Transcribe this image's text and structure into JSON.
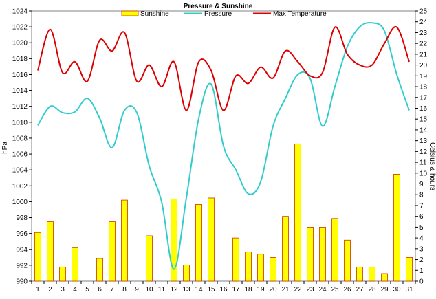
{
  "chart_data": {
    "type": "bar",
    "title": "Pressure & Sunshine",
    "ylabel_left": "hPa",
    "ylabel_right": "Celsius & hours",
    "x_categories": [
      "1",
      "2",
      "3",
      "4",
      "5",
      "6",
      "7",
      "8",
      "9",
      "10",
      "11",
      "12",
      "13",
      "14",
      "15",
      "16",
      "17",
      "18",
      "19",
      "20",
      "21",
      "22",
      "23",
      "24",
      "25",
      "26",
      "27",
      "28",
      "29",
      "30",
      "31"
    ],
    "y_left_ticks": [
      "990",
      "992",
      "994",
      "996",
      "998",
      "1000",
      "1002",
      "1004",
      "1006",
      "1008",
      "1010",
      "1012",
      "1014",
      "1016",
      "1018",
      "1020",
      "1022",
      "1024"
    ],
    "y_right_ticks": [
      "0",
      "1",
      "2",
      "3",
      "4",
      "5",
      "6",
      "7",
      "8",
      "9",
      "10",
      "11",
      "12",
      "13",
      "14",
      "15",
      "16",
      "17",
      "18",
      "19",
      "20",
      "21",
      "22",
      "23",
      "24",
      "25"
    ],
    "y_left_range": [
      990,
      1024
    ],
    "y_right_range": [
      0,
      25
    ],
    "legend_position": "top",
    "series": [
      {
        "name": "Sunshine",
        "kind": "bar",
        "axis": "right",
        "color": "#ffff00",
        "edge_color": "#cc3300",
        "values": [
          4.5,
          5.5,
          1.3,
          3.1,
          0,
          2.1,
          5.5,
          7.5,
          0,
          4.2,
          0,
          7.6,
          1.5,
          7.1,
          7.7,
          0,
          4.0,
          2.7,
          2.5,
          2.2,
          6.0,
          12.7,
          5.0,
          5.0,
          5.8,
          3.8,
          1.3,
          1.3,
          0.7,
          9.9,
          2.2
        ]
      },
      {
        "name": "Pressure",
        "kind": "line",
        "axis": "left",
        "color": "#33cccc",
        "values": [
          1009.6,
          1012.0,
          1011.2,
          1011.3,
          1013.0,
          1010.5,
          1006.8,
          1011.5,
          1011.2,
          1004.5,
          1000.0,
          991.5,
          1000.5,
          1010.5,
          1014.8,
          1007.0,
          1004.0,
          1001.0,
          1002.5,
          1009.5,
          1013.0,
          1016.0,
          1015.5,
          1009.5,
          1014.5,
          1019.5,
          1022.0,
          1022.5,
          1021.5,
          1016.0,
          1011.5
        ]
      },
      {
        "name": "Max Temperature",
        "kind": "line",
        "axis": "right",
        "color": "#dd0000",
        "values": [
          19.5,
          23.3,
          19.3,
          20.3,
          18.5,
          22.3,
          21.3,
          23.0,
          18.5,
          20.0,
          18.0,
          20.3,
          15.8,
          20.3,
          19.5,
          15.8,
          19.0,
          18.3,
          19.8,
          18.8,
          21.3,
          20.3,
          19.0,
          19.3,
          23.5,
          21.0,
          20.0,
          20.0,
          22.0,
          23.5,
          20.3
        ]
      }
    ]
  }
}
